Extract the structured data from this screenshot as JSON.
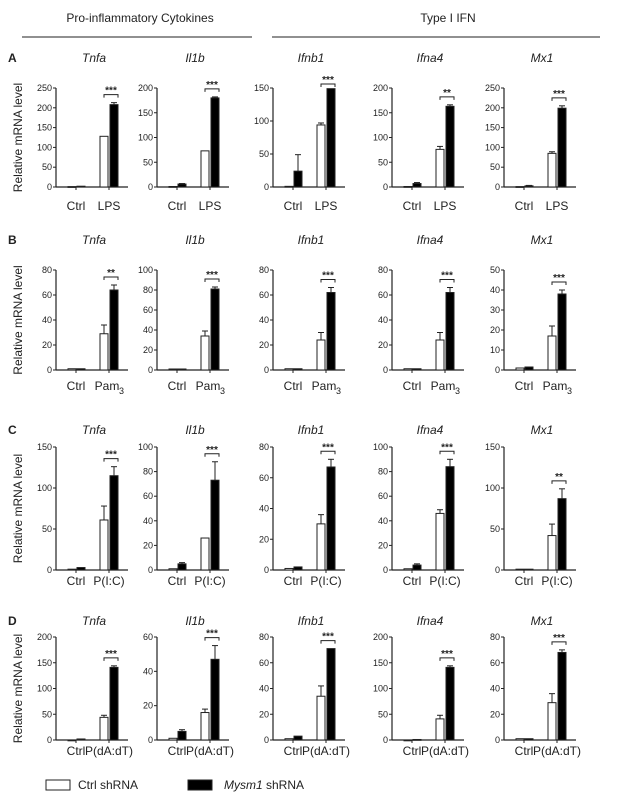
{
  "headers": {
    "group1": "Pro-inflammatory Cytokines",
    "group2": "Type I IFN"
  },
  "y_label": "Relative mRNA level",
  "legend": {
    "ctrl": "Ctrl shRNA",
    "mysm1_italic": "Mysm1",
    "mysm1_suffix": " shRNA"
  },
  "colors": {
    "ctrl_fill": "#ffffff",
    "mysm1_fill": "#000000",
    "axis": "#222222"
  },
  "chart_data": [
    {
      "panel": "A",
      "type": "bar",
      "treatment": "LPS",
      "treatment_sub": "",
      "charts": [
        {
          "title": "Tnfa",
          "ylim": [
            0,
            250
          ],
          "ticks": [
            0,
            50,
            100,
            150,
            200,
            250
          ],
          "ctrl": [
            1,
            2
          ],
          "ctrl_err": [
            0,
            0
          ],
          "treat": [
            128,
            208
          ],
          "treat_err": [
            0,
            5
          ],
          "sig": "***"
        },
        {
          "title": "Il1b",
          "ylim": [
            0,
            200
          ],
          "ticks": [
            0,
            50,
            100,
            150,
            200
          ],
          "ctrl": [
            1,
            6
          ],
          "ctrl_err": [
            0,
            1
          ],
          "treat": [
            73,
            180
          ],
          "treat_err": [
            0,
            2
          ],
          "sig": "***"
        },
        {
          "title": "Ifnb1",
          "ylim": [
            0,
            150
          ],
          "ticks": [
            0,
            50,
            100,
            150
          ],
          "ctrl": [
            1,
            24
          ],
          "ctrl_err": [
            0,
            25
          ],
          "treat": [
            94,
            149
          ],
          "treat_err": [
            3,
            0
          ],
          "sig": "***"
        },
        {
          "title": "Ifna4",
          "ylim": [
            0,
            200
          ],
          "ticks": [
            0,
            50,
            100,
            150,
            200
          ],
          "ctrl": [
            1,
            7
          ],
          "ctrl_err": [
            0,
            2
          ],
          "treat": [
            76,
            163
          ],
          "treat_err": [
            6,
            3
          ],
          "sig": "**"
        },
        {
          "title": "Mx1",
          "ylim": [
            0,
            250
          ],
          "ticks": [
            0,
            50,
            100,
            150,
            200,
            250
          ],
          "ctrl": [
            1,
            3
          ],
          "ctrl_err": [
            0,
            1
          ],
          "treat": [
            85,
            199
          ],
          "treat_err": [
            4,
            6
          ],
          "sig": "***"
        }
      ]
    },
    {
      "panel": "B",
      "type": "bar",
      "treatment": "Pam",
      "treatment_sub": "3",
      "charts": [
        {
          "title": "Tnfa",
          "ylim": [
            0,
            80
          ],
          "ticks": [
            0,
            20,
            40,
            60,
            80
          ],
          "ctrl": [
            1,
            1
          ],
          "ctrl_err": [
            0,
            0
          ],
          "treat": [
            29,
            64
          ],
          "treat_err": [
            7,
            4
          ],
          "sig": "**"
        },
        {
          "title": "Il1b",
          "ylim": [
            0,
            100
          ],
          "ticks": [
            0,
            20,
            40,
            60,
            80,
            100
          ],
          "ctrl": [
            1,
            1
          ],
          "ctrl_err": [
            0,
            0
          ],
          "treat": [
            34,
            81
          ],
          "treat_err": [
            5,
            2
          ],
          "sig": "***"
        },
        {
          "title": "Ifnb1",
          "ylim": [
            0,
            80
          ],
          "ticks": [
            0,
            20,
            40,
            60,
            80
          ],
          "ctrl": [
            1,
            1
          ],
          "ctrl_err": [
            0,
            0
          ],
          "treat": [
            24,
            62
          ],
          "treat_err": [
            6,
            4
          ],
          "sig": "***"
        },
        {
          "title": "Ifna4",
          "ylim": [
            0,
            80
          ],
          "ticks": [
            0,
            20,
            40,
            60,
            80
          ],
          "ctrl": [
            1,
            1
          ],
          "ctrl_err": [
            0,
            0
          ],
          "treat": [
            24,
            62
          ],
          "treat_err": [
            6,
            4
          ],
          "sig": "***"
        },
        {
          "title": "Mx1",
          "ylim": [
            0,
            50
          ],
          "ticks": [
            0,
            10,
            20,
            30,
            40,
            50
          ],
          "ctrl": [
            1,
            1.5
          ],
          "ctrl_err": [
            0,
            0
          ],
          "treat": [
            17,
            38
          ],
          "treat_err": [
            5,
            2
          ],
          "sig": "***"
        }
      ]
    },
    {
      "panel": "C",
      "type": "bar",
      "treatment": "P(I:C)",
      "treatment_sub": "",
      "charts": [
        {
          "title": "Tnfa",
          "ylim": [
            0,
            150
          ],
          "ticks": [
            0,
            50,
            100,
            150
          ],
          "ctrl": [
            1,
            3
          ],
          "ctrl_err": [
            0,
            0
          ],
          "treat": [
            61,
            115
          ],
          "treat_err": [
            17,
            11
          ],
          "sig": "***"
        },
        {
          "title": "Il1b",
          "ylim": [
            0,
            100
          ],
          "ticks": [
            0,
            20,
            40,
            60,
            80,
            100
          ],
          "ctrl": [
            1,
            5
          ],
          "ctrl_err": [
            0,
            1
          ],
          "treat": [
            26,
            73
          ],
          "treat_err": [
            0,
            15
          ],
          "sig": "***"
        },
        {
          "title": "Ifnb1",
          "ylim": [
            0,
            80
          ],
          "ticks": [
            0,
            20,
            40,
            60,
            80
          ],
          "ctrl": [
            1,
            2
          ],
          "ctrl_err": [
            0,
            0
          ],
          "treat": [
            30,
            67
          ],
          "treat_err": [
            6,
            5
          ],
          "sig": "***"
        },
        {
          "title": "Ifna4",
          "ylim": [
            0,
            100
          ],
          "ticks": [
            0,
            20,
            40,
            60,
            80,
            100
          ],
          "ctrl": [
            1,
            4
          ],
          "ctrl_err": [
            0,
            1
          ],
          "treat": [
            46,
            84
          ],
          "treat_err": [
            3,
            6
          ],
          "sig": "***"
        },
        {
          "title": "Mx1",
          "ylim": [
            0,
            150
          ],
          "ticks": [
            0,
            50,
            100,
            150
          ],
          "ctrl": [
            1,
            1
          ],
          "ctrl_err": [
            0,
            0
          ],
          "treat": [
            42,
            87
          ],
          "treat_err": [
            14,
            12
          ],
          "sig": "**"
        }
      ]
    },
    {
      "panel": "D",
      "type": "bar",
      "treatment": "P(dA:dT)",
      "treatment_sub": "",
      "charts": [
        {
          "title": "Tnfa",
          "ylim": [
            0,
            200
          ],
          "ticks": [
            0,
            50,
            100,
            150,
            200
          ],
          "ctrl": [
            0,
            2
          ],
          "ctrl_err": [
            0,
            0
          ],
          "treat": [
            44,
            141
          ],
          "treat_err": [
            4,
            3
          ],
          "sig": "***"
        },
        {
          "title": "Il1b",
          "ylim": [
            0,
            60
          ],
          "ticks": [
            0,
            20,
            40,
            60
          ],
          "ctrl": [
            1,
            5
          ],
          "ctrl_err": [
            0,
            1
          ],
          "treat": [
            16,
            47
          ],
          "treat_err": [
            2,
            8
          ],
          "sig": "***"
        },
        {
          "title": "Ifnb1",
          "ylim": [
            0,
            80
          ],
          "ticks": [
            0,
            20,
            40,
            60,
            80
          ],
          "ctrl": [
            1,
            3
          ],
          "ctrl_err": [
            0,
            0
          ],
          "treat": [
            34,
            71
          ],
          "treat_err": [
            8,
            0
          ],
          "sig": "***"
        },
        {
          "title": "Ifna4",
          "ylim": [
            0,
            200
          ],
          "ticks": [
            0,
            50,
            100,
            150,
            200
          ],
          "ctrl": [
            0,
            1
          ],
          "ctrl_err": [
            0,
            0
          ],
          "treat": [
            41,
            141
          ],
          "treat_err": [
            7,
            3
          ],
          "sig": "***"
        },
        {
          "title": "Mx1",
          "ylim": [
            0,
            80
          ],
          "ticks": [
            0,
            20,
            40,
            60,
            80
          ],
          "ctrl": [
            1,
            1
          ],
          "ctrl_err": [
            0,
            0
          ],
          "treat": [
            29,
            68
          ],
          "treat_err": [
            7,
            2
          ],
          "sig": "***"
        }
      ]
    }
  ],
  "ctrl_label": "Ctrl"
}
